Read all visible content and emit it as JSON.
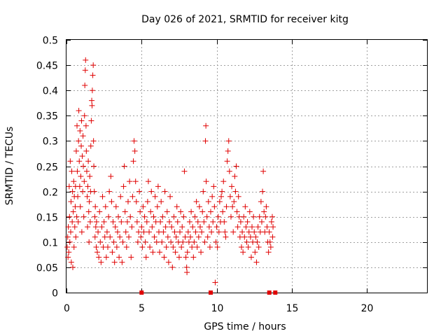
{
  "chart_data": {
    "type": "scatter",
    "title": "Day 026 of 2021, SRMTID for receiver kitg",
    "xlabel": "GPS time / hours",
    "ylabel": "SRMTID / TECUs",
    "xlim": [
      0,
      24
    ],
    "ylim": [
      0,
      0.5
    ],
    "xticks": [
      0,
      5,
      10,
      15,
      20
    ],
    "xtick_labels": [
      "0",
      "5",
      "10",
      "15",
      "20"
    ],
    "yticks": [
      0,
      0.05,
      0.1,
      0.15,
      0.2,
      0.25,
      0.3,
      0.35,
      0.4,
      0.45,
      0.5
    ],
    "ytick_labels": [
      "0",
      "0.05",
      "0.1",
      "0.15",
      "0.2",
      "0.25",
      "0.3",
      "0.35",
      "0.4",
      "0.45",
      "0.5"
    ],
    "grid": true,
    "marker": "plus",
    "series_color": "#e00000",
    "series": [
      {
        "name": "SRMTID",
        "points": [
          [
            0.05,
            0.09
          ],
          [
            0.08,
            0.11
          ],
          [
            0.1,
            0.07
          ],
          [
            0.12,
            0.13
          ],
          [
            0.15,
            0.08
          ],
          [
            0.18,
            0.21
          ],
          [
            0.2,
            0.15
          ],
          [
            0.22,
            0.1
          ],
          [
            0.25,
            0.26
          ],
          [
            0.28,
            0.12
          ],
          [
            0.3,
            0.18
          ],
          [
            0.32,
            0.06
          ],
          [
            0.35,
            0.24
          ],
          [
            0.38,
            0.14
          ],
          [
            0.4,
            0.2
          ],
          [
            0.42,
            0.05
          ],
          [
            0.45,
            0.16
          ],
          [
            0.48,
            0.22
          ],
          [
            0.5,
            0.09
          ],
          [
            0.52,
            0.19
          ],
          [
            0.55,
            0.13
          ],
          [
            0.58,
            0.17
          ],
          [
            0.6,
            0.21
          ],
          [
            0.62,
            0.11
          ],
          [
            0.65,
            0.28
          ],
          [
            0.68,
            0.15
          ],
          [
            0.7,
            0.33
          ],
          [
            0.72,
            0.24
          ],
          [
            0.75,
            0.19
          ],
          [
            0.78,
            0.14
          ],
          [
            0.8,
            0.3
          ],
          [
            0.82,
            0.36
          ],
          [
            0.85,
            0.26
          ],
          [
            0.88,
            0.21
          ],
          [
            0.9,
            0.32
          ],
          [
            0.92,
            0.17
          ],
          [
            0.95,
            0.23
          ],
          [
            0.98,
            0.29
          ],
          [
            1.0,
            0.34
          ],
          [
            1.02,
            0.12
          ],
          [
            1.05,
            0.27
          ],
          [
            1.08,
            0.2
          ],
          [
            1.1,
            0.31
          ],
          [
            1.12,
            0.25
          ],
          [
            1.15,
            0.15
          ],
          [
            1.18,
            0.22
          ],
          [
            1.2,
            0.35
          ],
          [
            1.22,
            0.41
          ],
          [
            1.25,
            0.44
          ],
          [
            1.27,
            0.46
          ],
          [
            1.3,
            0.33
          ],
          [
            1.32,
            0.28
          ],
          [
            1.35,
            0.24
          ],
          [
            1.38,
            0.19
          ],
          [
            1.4,
            0.13
          ],
          [
            1.42,
            0.21
          ],
          [
            1.45,
            0.26
          ],
          [
            1.48,
            0.16
          ],
          [
            1.5,
            0.1
          ],
          [
            1.52,
            0.18
          ],
          [
            1.55,
            0.23
          ],
          [
            1.58,
            0.14
          ],
          [
            1.6,
            0.2
          ],
          [
            1.62,
            0.29
          ],
          [
            1.65,
            0.34
          ],
          [
            1.68,
            0.38
          ],
          [
            1.7,
            0.37
          ],
          [
            1.72,
            0.4
          ],
          [
            1.75,
            0.43
          ],
          [
            1.78,
            0.45
          ],
          [
            1.8,
            0.3
          ],
          [
            1.82,
            0.25
          ],
          [
            1.85,
            0.2
          ],
          [
            1.88,
            0.15
          ],
          [
            1.9,
            0.11
          ],
          [
            1.92,
            0.17
          ],
          [
            1.95,
            0.13
          ],
          [
            1.98,
            0.09
          ],
          [
            2.0,
            0.14
          ],
          [
            2.05,
            0.08
          ],
          [
            2.1,
            0.12
          ],
          [
            2.15,
            0.07
          ],
          [
            2.2,
            0.16
          ],
          [
            2.25,
            0.1
          ],
          [
            2.3,
            0.06
          ],
          [
            2.35,
            0.13
          ],
          [
            2.4,
            0.19
          ],
          [
            2.45,
            0.09
          ],
          [
            2.5,
            0.14
          ],
          [
            2.55,
            0.11
          ],
          [
            2.6,
            0.17
          ],
          [
            2.65,
            0.07
          ],
          [
            2.7,
            0.12
          ],
          [
            2.75,
            0.09
          ],
          [
            2.8,
            0.15
          ],
          [
            2.85,
            0.2
          ],
          [
            2.9,
            0.11
          ],
          [
            2.95,
            0.23
          ],
          [
            3.0,
            0.18
          ],
          [
            3.05,
            0.08
          ],
          [
            3.1,
            0.14
          ],
          [
            3.15,
            0.1
          ],
          [
            3.2,
            0.06
          ],
          [
            3.25,
            0.13
          ],
          [
            3.3,
            0.17
          ],
          [
            3.35,
            0.09
          ],
          [
            3.4,
            0.12
          ],
          [
            3.45,
            0.15
          ],
          [
            3.5,
            0.07
          ],
          [
            3.55,
            0.11
          ],
          [
            3.6,
            0.19
          ],
          [
            3.65,
            0.14
          ],
          [
            3.7,
            0.06
          ],
          [
            3.75,
            0.1
          ],
          [
            3.8,
            0.21
          ],
          [
            3.85,
            0.25
          ],
          [
            3.9,
            0.16
          ],
          [
            3.95,
            0.12
          ],
          [
            4.0,
            0.09
          ],
          [
            4.05,
            0.14
          ],
          [
            4.1,
            0.18
          ],
          [
            4.15,
            0.11
          ],
          [
            4.2,
            0.22
          ],
          [
            4.25,
            0.15
          ],
          [
            4.3,
            0.07
          ],
          [
            4.35,
            0.13
          ],
          [
            4.4,
            0.19
          ],
          [
            4.45,
            0.26
          ],
          [
            4.5,
            0.3
          ],
          [
            4.55,
            0.28
          ],
          [
            4.6,
            0.22
          ],
          [
            4.65,
            0.18
          ],
          [
            4.7,
            0.14
          ],
          [
            4.75,
            0.1
          ],
          [
            4.8,
            0.12
          ],
          [
            4.85,
            0.2
          ],
          [
            4.9,
            0.16
          ],
          [
            4.95,
            0.11
          ],
          [
            5.0,
            0.13
          ],
          [
            5.05,
            0.09
          ],
          [
            5.1,
            0.17
          ],
          [
            5.15,
            0.12
          ],
          [
            5.2,
            0.15
          ],
          [
            5.25,
            0.1
          ],
          [
            5.3,
            0.07
          ],
          [
            5.35,
            0.14
          ],
          [
            5.4,
            0.18
          ],
          [
            5.45,
            0.22
          ],
          [
            5.5,
            0.12
          ],
          [
            5.55,
            0.09
          ],
          [
            5.6,
            0.16
          ],
          [
            5.65,
            0.2
          ],
          [
            5.7,
            0.13
          ],
          [
            5.75,
            0.08
          ],
          [
            5.8,
            0.15
          ],
          [
            5.85,
            0.11
          ],
          [
            5.9,
            0.19
          ],
          [
            5.95,
            0.14
          ],
          [
            6.0,
            0.1
          ],
          [
            6.05,
            0.17
          ],
          [
            6.1,
            0.21
          ],
          [
            6.15,
            0.12
          ],
          [
            6.2,
            0.08
          ],
          [
            6.25,
            0.14
          ],
          [
            6.3,
            0.18
          ],
          [
            6.35,
            0.1
          ],
          [
            6.4,
            0.15
          ],
          [
            6.45,
            0.12
          ],
          [
            6.5,
            0.07
          ],
          [
            6.55,
            0.2
          ],
          [
            6.6,
            0.13
          ],
          [
            6.65,
            0.09
          ],
          [
            6.7,
            0.16
          ],
          [
            6.75,
            0.11
          ],
          [
            6.8,
            0.06
          ],
          [
            6.85,
            0.14
          ],
          [
            6.9,
            0.19
          ],
          [
            6.95,
            0.1
          ],
          [
            7.0,
            0.13
          ],
          [
            7.05,
            0.05
          ],
          [
            7.1,
            0.09
          ],
          [
            7.15,
            0.15
          ],
          [
            7.2,
            0.12
          ],
          [
            7.25,
            0.08
          ],
          [
            7.3,
            0.11
          ],
          [
            7.35,
            0.17
          ],
          [
            7.4,
            0.14
          ],
          [
            7.45,
            0.1
          ],
          [
            7.5,
            0.07
          ],
          [
            7.55,
            0.12
          ],
          [
            7.6,
            0.16
          ],
          [
            7.65,
            0.09
          ],
          [
            7.7,
            0.13
          ],
          [
            7.75,
            0.1
          ],
          [
            7.8,
            0.15
          ],
          [
            7.85,
            0.24
          ],
          [
            7.9,
            0.11
          ],
          [
            7.95,
            0.07
          ],
          [
            8.0,
            0.05
          ],
          [
            8.02,
            0.04
          ],
          [
            8.05,
            0.08
          ],
          [
            8.1,
            0.12
          ],
          [
            8.15,
            0.1
          ],
          [
            8.2,
            0.14
          ],
          [
            8.25,
            0.11
          ],
          [
            8.3,
            0.16
          ],
          [
            8.35,
            0.09
          ],
          [
            8.4,
            0.13
          ],
          [
            8.45,
            0.07
          ],
          [
            8.5,
            0.1
          ],
          [
            8.55,
            0.15
          ],
          [
            8.6,
            0.12
          ],
          [
            8.65,
            0.18
          ],
          [
            8.7,
            0.09
          ],
          [
            8.75,
            0.14
          ],
          [
            8.8,
            0.11
          ],
          [
            8.85,
            0.17
          ],
          [
            8.9,
            0.13
          ],
          [
            8.95,
            0.08
          ],
          [
            9.0,
            0.12
          ],
          [
            9.05,
            0.16
          ],
          [
            9.1,
            0.2
          ],
          [
            9.15,
            0.14
          ],
          [
            9.2,
            0.1
          ],
          [
            9.25,
            0.3
          ],
          [
            9.28,
            0.33
          ],
          [
            9.3,
            0.22
          ],
          [
            9.35,
            0.15
          ],
          [
            9.4,
            0.11
          ],
          [
            9.45,
            0.18
          ],
          [
            9.5,
            0.13
          ],
          [
            9.55,
            0.09
          ],
          [
            9.6,
            0.16
          ],
          [
            9.65,
            0.12
          ],
          [
            9.7,
            0.19
          ],
          [
            9.75,
            0.14
          ],
          [
            9.8,
            0.21
          ],
          [
            9.85,
            0.17
          ],
          [
            9.9,
            0.02
          ],
          [
            9.95,
            0.1
          ],
          [
            10.0,
            0.13
          ],
          [
            10.05,
            0.09
          ],
          [
            10.1,
            0.15
          ],
          [
            10.15,
            0.12
          ],
          [
            10.2,
            0.18
          ],
          [
            10.25,
            0.14
          ],
          [
            10.3,
            0.19
          ],
          [
            10.35,
            0.2
          ],
          [
            10.4,
            0.16
          ],
          [
            10.45,
            0.22
          ],
          [
            10.5,
            0.14
          ],
          [
            10.55,
            0.12
          ],
          [
            10.6,
            0.11
          ],
          [
            10.65,
            0.17
          ],
          [
            10.7,
            0.26
          ],
          [
            10.75,
            0.28
          ],
          [
            10.8,
            0.3
          ],
          [
            10.85,
            0.24
          ],
          [
            10.9,
            0.19
          ],
          [
            10.95,
            0.15
          ],
          [
            11.0,
            0.21
          ],
          [
            11.05,
            0.17
          ],
          [
            11.1,
            0.12
          ],
          [
            11.15,
            0.18
          ],
          [
            11.2,
            0.23
          ],
          [
            11.25,
            0.2
          ],
          [
            11.3,
            0.25
          ],
          [
            11.35,
            0.16
          ],
          [
            11.4,
            0.13
          ],
          [
            11.45,
            0.19
          ],
          [
            11.5,
            0.15
          ],
          [
            11.55,
            0.11
          ],
          [
            11.6,
            0.14
          ],
          [
            11.65,
            0.09
          ],
          [
            11.7,
            0.12
          ],
          [
            11.75,
            0.08
          ],
          [
            11.8,
            0.15
          ],
          [
            11.85,
            0.11
          ],
          [
            11.9,
            0.17
          ],
          [
            11.95,
            0.13
          ],
          [
            12.0,
            0.1
          ],
          [
            12.05,
            0.14
          ],
          [
            12.1,
            0.09
          ],
          [
            12.15,
            0.12
          ],
          [
            12.2,
            0.16
          ],
          [
            12.25,
            0.11
          ],
          [
            12.3,
            0.07
          ],
          [
            12.35,
            0.13
          ],
          [
            12.4,
            0.1
          ],
          [
            12.45,
            0.15
          ],
          [
            12.5,
            0.12
          ],
          [
            12.55,
            0.08
          ],
          [
            12.6,
            0.11
          ],
          [
            12.65,
            0.06
          ],
          [
            12.7,
            0.1
          ],
          [
            12.75,
            0.13
          ],
          [
            12.8,
            0.09
          ],
          [
            12.85,
            0.15
          ],
          [
            12.9,
            0.12
          ],
          [
            12.95,
            0.18
          ],
          [
            13.0,
            0.14
          ],
          [
            13.05,
            0.2
          ],
          [
            13.1,
            0.24
          ],
          [
            13.15,
            0.16
          ],
          [
            13.2,
            0.12
          ],
          [
            13.25,
            0.15
          ],
          [
            13.3,
            0.17
          ],
          [
            13.35,
            0.13
          ],
          [
            13.4,
            0.1
          ],
          [
            13.45,
            0.08
          ],
          [
            13.5,
            0.12
          ],
          [
            13.55,
            0.1
          ],
          [
            13.6,
            0.09
          ],
          [
            13.65,
            0.14
          ],
          [
            13.7,
            0.15
          ],
          [
            13.72,
            0.11
          ],
          [
            13.75,
            0.13
          ]
        ],
        "zero_gap_markers": [
          5.0,
          9.6,
          13.5,
          13.9
        ]
      }
    ]
  }
}
